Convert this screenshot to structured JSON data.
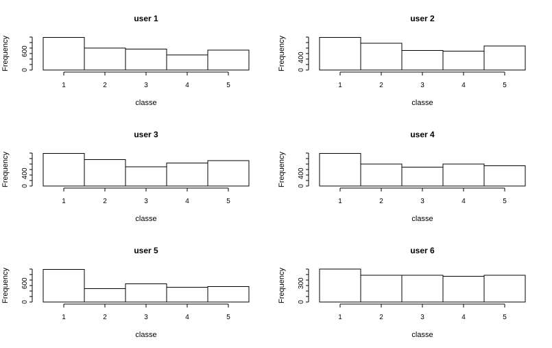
{
  "chart_data": [
    {
      "type": "bar",
      "title": "user 1",
      "xlabel": "classe",
      "ylabel": "Frequency",
      "categories": [
        "1",
        "2",
        "3",
        "4",
        "5"
      ],
      "values": [
        1050,
        700,
        670,
        480,
        640
      ],
      "ylim": [
        0,
        1100
      ],
      "yticks": [
        0,
        600
      ],
      "grid": false
    },
    {
      "type": "bar",
      "title": "user 2",
      "xlabel": "classe",
      "ylabel": "Frequency",
      "categories": [
        "1",
        "2",
        "3",
        "4",
        "5"
      ],
      "values": [
        1050,
        860,
        630,
        600,
        770
      ],
      "ylim": [
        0,
        1100
      ],
      "yticks": [
        0,
        400
      ],
      "grid": false
    },
    {
      "type": "bar",
      "title": "user 3",
      "xlabel": "classe",
      "ylabel": "Frequency",
      "categories": [
        "1",
        "2",
        "3",
        "4",
        "5"
      ],
      "values": [
        1050,
        850,
        620,
        740,
        810
      ],
      "ylim": [
        0,
        1100
      ],
      "yticks": [
        0,
        400
      ],
      "grid": false
    },
    {
      "type": "bar",
      "title": "user 4",
      "xlabel": "classe",
      "ylabel": "Frequency",
      "categories": [
        "1",
        "2",
        "3",
        "4",
        "5"
      ],
      "values": [
        1050,
        700,
        600,
        700,
        650
      ],
      "ylim": [
        0,
        1100
      ],
      "yticks": [
        0,
        400
      ],
      "grid": false
    },
    {
      "type": "bar",
      "title": "user 5",
      "xlabel": "classe",
      "ylabel": "Frequency",
      "categories": [
        "1",
        "2",
        "3",
        "4",
        "5"
      ],
      "values": [
        1050,
        430,
        580,
        470,
        490
      ],
      "ylim": [
        0,
        1100
      ],
      "yticks": [
        0,
        600
      ],
      "grid": false
    },
    {
      "type": "bar",
      "title": "user 6",
      "xlabel": "classe",
      "ylabel": "Frequency",
      "categories": [
        "1",
        "2",
        "3",
        "4",
        "5"
      ],
      "values": [
        530,
        430,
        430,
        410,
        430
      ],
      "ylim": [
        0,
        550
      ],
      "yticks": [
        0,
        300
      ],
      "grid": false
    }
  ]
}
